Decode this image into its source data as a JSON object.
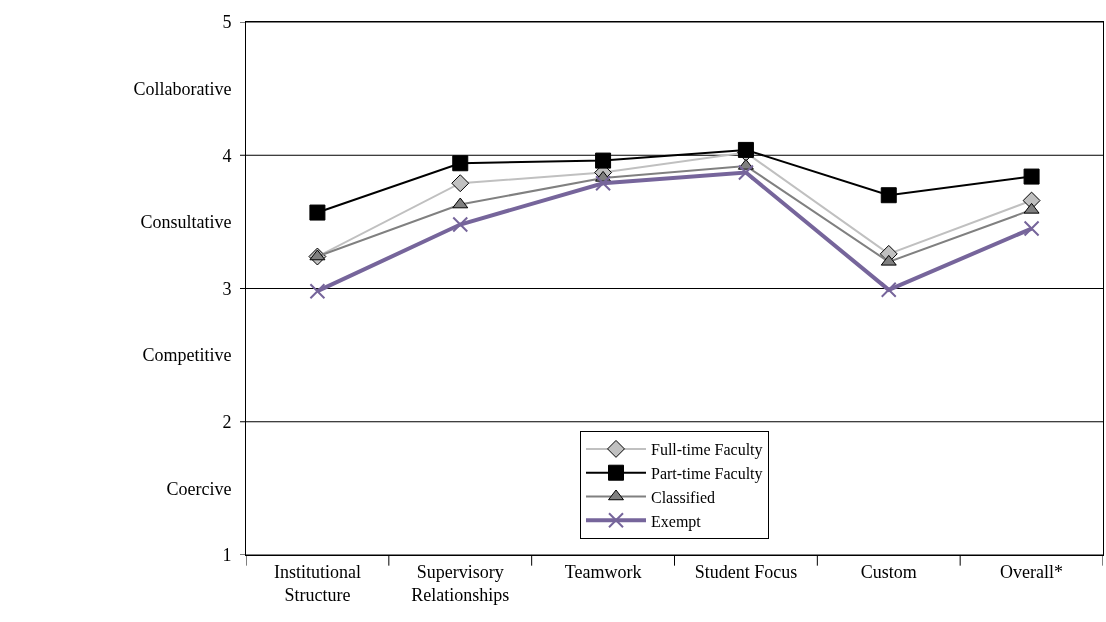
{
  "chart_data": {
    "type": "line",
    "categories": [
      "Institutional Structure",
      "Supervisory Relationships",
      "Teamwork",
      "Student Focus",
      "Custom",
      "Overall*"
    ],
    "series": [
      {
        "name": "Full-time Faculty",
        "color": "#c0c0c0",
        "marker": "diamond",
        "values": [
          3.24,
          3.79,
          3.87,
          4.02,
          3.26,
          3.66
        ]
      },
      {
        "name": "Part-time Faculty",
        "color": "#000000",
        "marker": "square",
        "values": [
          3.57,
          3.94,
          3.96,
          4.04,
          3.7,
          3.84
        ]
      },
      {
        "name": "Classified",
        "color": "#808080",
        "marker": "triangle",
        "values": [
          3.24,
          3.63,
          3.83,
          3.92,
          3.2,
          3.59
        ]
      },
      {
        "name": "Exempt",
        "color": "#76659b",
        "marker": "cross",
        "values": [
          2.98,
          3.48,
          3.79,
          3.87,
          2.99,
          3.45
        ]
      }
    ],
    "ylim": [
      1,
      5
    ],
    "yticks": [
      1,
      2,
      3,
      4,
      5,
      {
        "value": 1.5,
        "label": "Coercive"
      },
      {
        "value": 2.5,
        "label": "Competitive"
      },
      {
        "value": 3.5,
        "label": "Consultative"
      },
      {
        "value": 4.5,
        "label": "Collaborative"
      }
    ],
    "grid": "y",
    "legend": "bottom",
    "line_style": "solid"
  }
}
